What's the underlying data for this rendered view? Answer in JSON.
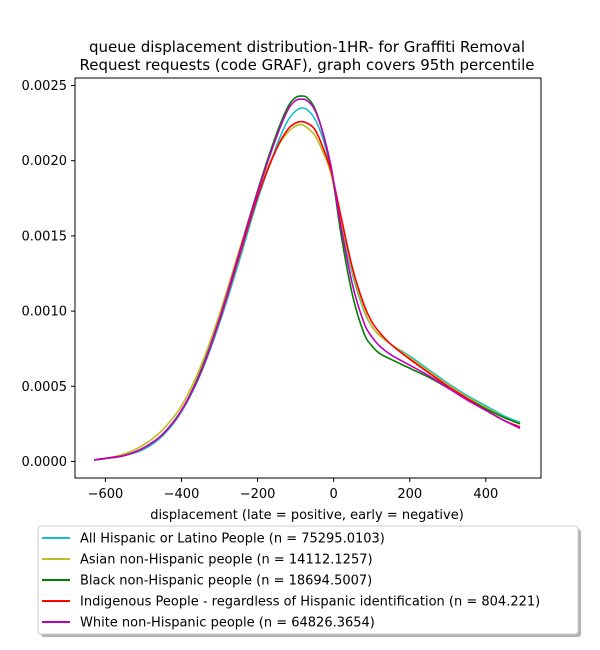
{
  "chart_data": {
    "type": "line",
    "title_lines": [
      "queue displacement distribution-1HR-  for Graffiti Removal",
      "Request  requests (code GRAF), graph covers 95th percentile"
    ],
    "xlabel": "displacement (late = positive, early = negative)",
    "ylabel": "",
    "xlim": [
      -680,
      545
    ],
    "ylim": [
      -0.00011,
      0.00255
    ],
    "x_ticks": [
      -600,
      -400,
      -200,
      0,
      200,
      400
    ],
    "x_tick_labels": [
      "−600",
      "−400",
      "−200",
      "0",
      "200",
      "400"
    ],
    "y_ticks": [
      0,
      0.0005,
      0.001,
      0.0015,
      0.002,
      0.0025
    ],
    "y_tick_labels": [
      "0.0000",
      "0.0005",
      "0.0010",
      "0.0015",
      "0.0020",
      "0.0025"
    ],
    "grid": false,
    "legend_position": "bottom, below axes",
    "x": [
      -630,
      -600,
      -550,
      -500,
      -450,
      -400,
      -350,
      -300,
      -250,
      -200,
      -150,
      -120,
      -100,
      -85,
      -70,
      -50,
      -30,
      -10,
      0,
      20,
      50,
      80,
      100,
      120,
      150,
      200,
      250,
      300,
      350,
      400,
      450,
      490
    ],
    "series": [
      {
        "name": "All Hispanic or Latino People (n = 75295.0103)",
        "color": "#17becf",
        "values": [
          1e-05,
          2e-05,
          4e-05,
          8e-05,
          0.00017,
          0.00033,
          0.00058,
          0.00092,
          0.00132,
          0.00174,
          0.0021,
          0.00227,
          0.00233,
          0.00235,
          0.00234,
          0.00228,
          0.00216,
          0.00198,
          0.00185,
          0.00158,
          0.00124,
          0.001,
          0.0009,
          0.00084,
          0.00078,
          0.0007,
          0.00061,
          0.00052,
          0.00044,
          0.00037,
          0.0003,
          0.00026
        ]
      },
      {
        "name": "Asian non-Hispanic people (n = 14112.1257)",
        "color": "#bcbd22",
        "values": [
          1e-05,
          2e-05,
          5e-05,
          0.00011,
          0.00021,
          0.00037,
          0.00063,
          0.00098,
          0.00139,
          0.00179,
          0.00208,
          0.00219,
          0.00223,
          0.00224,
          0.00222,
          0.00217,
          0.00207,
          0.00194,
          0.00183,
          0.0016,
          0.00126,
          0.00101,
          0.0009,
          0.00084,
          0.00078,
          0.00069,
          0.0006,
          0.00051,
          0.00043,
          0.00036,
          0.00029,
          0.00025
        ]
      },
      {
        "name": "Black non-Hispanic people (n = 18694.5007)",
        "color": "#008000",
        "values": [
          1e-05,
          2e-05,
          4e-05,
          9e-05,
          0.00018,
          0.00034,
          0.0006,
          0.00095,
          0.00137,
          0.0018,
          0.00218,
          0.00236,
          0.00242,
          0.00243,
          0.00242,
          0.00235,
          0.0022,
          0.00199,
          0.00185,
          0.0015,
          0.0011,
          0.00085,
          0.00077,
          0.00072,
          0.00068,
          0.00062,
          0.00056,
          0.00049,
          0.00042,
          0.00035,
          0.00029,
          0.00025
        ]
      },
      {
        "name": "Indigenous People - regardless of Hispanic identification (n = 804.221)",
        "color": "#ff0000",
        "values": [
          1e-05,
          2e-05,
          4e-05,
          9e-05,
          0.00018,
          0.00034,
          0.00059,
          0.00094,
          0.00135,
          0.00176,
          0.00208,
          0.00221,
          0.00225,
          0.00226,
          0.00225,
          0.00221,
          0.0021,
          0.00196,
          0.00186,
          0.00162,
          0.00128,
          0.00104,
          0.00093,
          0.00086,
          0.00078,
          0.00068,
          0.00059,
          0.0005,
          0.00042,
          0.00034,
          0.00027,
          0.00023
        ]
      },
      {
        "name": "White non-Hispanic people (n = 64826.3654)",
        "color": "#bf00bf",
        "values": [
          1e-05,
          2e-05,
          4e-05,
          9e-05,
          0.00018,
          0.00034,
          0.00059,
          0.00095,
          0.00137,
          0.00179,
          0.00216,
          0.00234,
          0.0024,
          0.00241,
          0.0024,
          0.00234,
          0.0022,
          0.002,
          0.00186,
          0.00155,
          0.00117,
          0.00092,
          0.00083,
          0.00077,
          0.00071,
          0.00064,
          0.00057,
          0.00049,
          0.00041,
          0.00034,
          0.00027,
          0.00022
        ]
      }
    ]
  }
}
